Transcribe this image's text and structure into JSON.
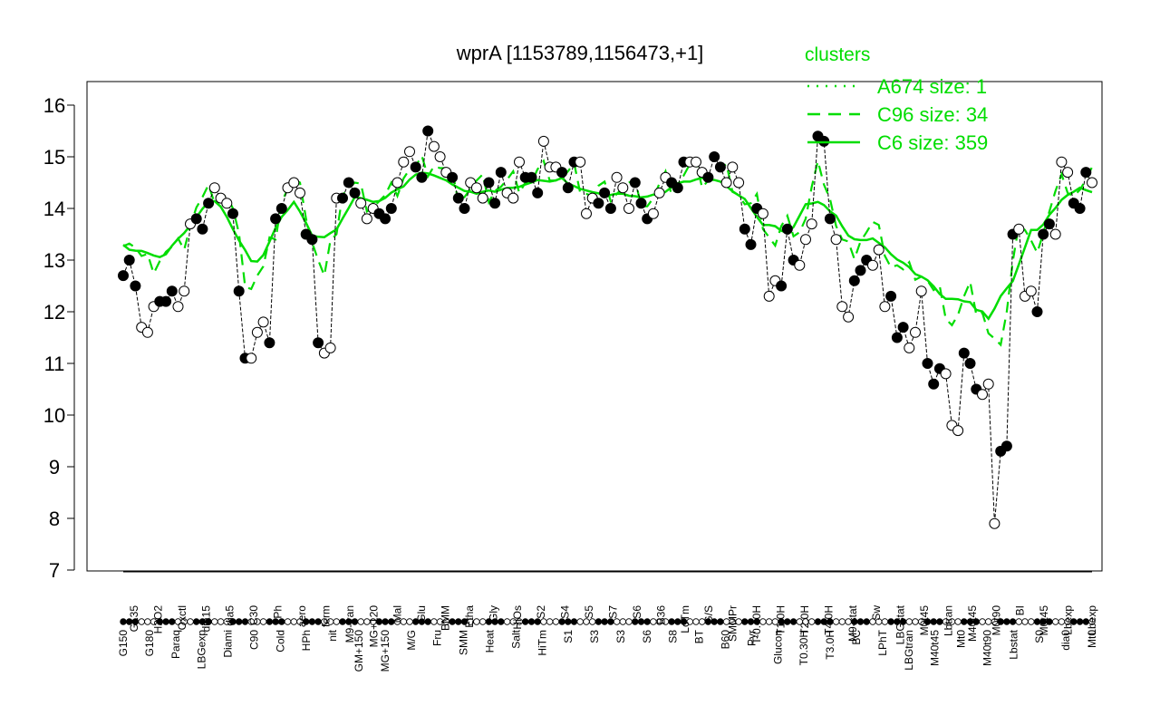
{
  "chart_data": {
    "type": "line",
    "title": "wprA [1153789,1156473,+1]",
    "xlabel": "",
    "ylabel": "",
    "ylim": [
      7,
      16
    ],
    "yticks": [
      7,
      8,
      9,
      10,
      11,
      12,
      13,
      14,
      15,
      16
    ],
    "n_points": 160,
    "x_tick_labels_upper": [
      "G135",
      "H2O2",
      "Oxctl",
      "dia15",
      "dia5",
      "C30",
      "LPh",
      "aero",
      "ferm",
      "M9-tran",
      "MG+120",
      "Mal",
      "Glu",
      "BMM",
      "Etha",
      "Gly",
      "HiOs",
      "S2",
      "S4",
      "S5",
      "S7",
      "S6",
      "B36",
      "LoTm",
      "G/S",
      "SMMPr",
      "T-0.40H",
      "T1.0H",
      "T2.0H",
      "T4.0H",
      "M9-stat",
      "Sw",
      "LBGstat",
      "M0t45",
      "Lbtran",
      "M40t45",
      "M0t90",
      "BI",
      "M0t45",
      "Lbexp",
      "Lbexp"
    ],
    "x_tick_labels_lower": [
      "G150",
      "G180",
      "Paraq",
      "LBGexp",
      "Diami",
      "C90",
      "Cold",
      "HPh",
      "nit",
      "GM+150",
      "MG+150",
      "M/G",
      "Fru",
      "SMM",
      "Heat",
      "Salt",
      "HiTm",
      "S1",
      "S3",
      "S3",
      "S6",
      "S8",
      "BT",
      "B60",
      "Pyr",
      "Glucon",
      "T0.30H",
      "T3.0H",
      "BC",
      "LPhT",
      "LBGtran",
      "M40t45",
      "Mt0",
      "M40t90",
      "Lbstat",
      "S0",
      "dia0",
      "Mt0"
    ],
    "legend": {
      "title": "clusters",
      "placement": "top-right",
      "entries": [
        {
          "label": "A674 size: 1",
          "style": "dotted"
        },
        {
          "label": "C96 size: 34",
          "style": "dashed"
        },
        {
          "label": "C6 size: 359",
          "style": "solid"
        }
      ]
    },
    "colors": {
      "clusters": "#00dd00",
      "points_fill_dark": "#000000",
      "points_fill_light": "#ffffff",
      "profile_line": "#000000"
    },
    "series": [
      {
        "name": "wprA",
        "values": [
          12.7,
          13.0,
          12.5,
          11.7,
          11.6,
          12.1,
          12.2,
          12.2,
          12.4,
          12.1,
          12.4,
          13.7,
          13.8,
          13.6,
          14.1,
          14.4,
          14.2,
          14.1,
          13.9,
          12.4,
          11.1,
          11.1,
          11.6,
          11.8,
          11.4,
          13.8,
          14.0,
          14.4,
          14.5,
          14.3,
          13.5,
          13.4,
          11.4,
          11.2,
          11.3,
          14.2,
          14.2,
          14.5,
          14.3,
          14.1,
          13.8,
          14.0,
          13.9,
          13.8,
          14.0,
          14.5,
          14.9,
          15.1,
          14.8,
          14.6,
          15.5,
          15.2,
          15.0,
          14.7,
          14.6,
          14.2,
          14.0,
          14.5,
          14.4,
          14.2,
          14.5,
          14.1,
          14.7,
          14.3,
          14.2,
          14.9,
          14.6,
          14.6,
          14.3,
          15.3,
          14.8,
          14.8,
          14.7,
          14.4,
          14.9,
          14.9,
          13.9,
          14.2,
          14.1,
          14.3,
          14.0,
          14.6,
          14.4,
          14.0,
          14.5,
          14.1,
          13.8,
          13.9,
          14.3,
          14.6,
          14.5,
          14.4,
          14.9,
          14.9,
          14.9,
          14.7,
          14.6,
          15.0,
          14.8,
          14.5,
          14.8,
          14.5,
          13.6,
          13.3,
          14.0,
          13.9,
          12.3,
          12.6,
          12.5,
          13.6,
          13.0,
          12.9,
          13.4,
          13.7,
          15.4,
          15.3,
          13.8,
          13.4,
          12.1,
          11.9,
          12.6,
          12.8,
          13.0,
          12.9,
          13.2,
          12.1,
          12.3,
          11.5,
          11.7,
          11.3,
          11.6,
          12.4,
          11.0,
          10.6,
          10.9,
          10.8,
          9.8,
          9.7,
          11.2,
          11.0,
          10.5,
          10.4,
          10.6,
          7.9,
          9.3,
          9.4,
          13.5,
          13.6,
          12.3,
          12.4,
          12.0,
          13.5,
          13.7,
          13.5,
          14.9,
          14.7,
          14.1,
          14.0,
          14.7,
          14.5
        ]
      }
    ]
  }
}
